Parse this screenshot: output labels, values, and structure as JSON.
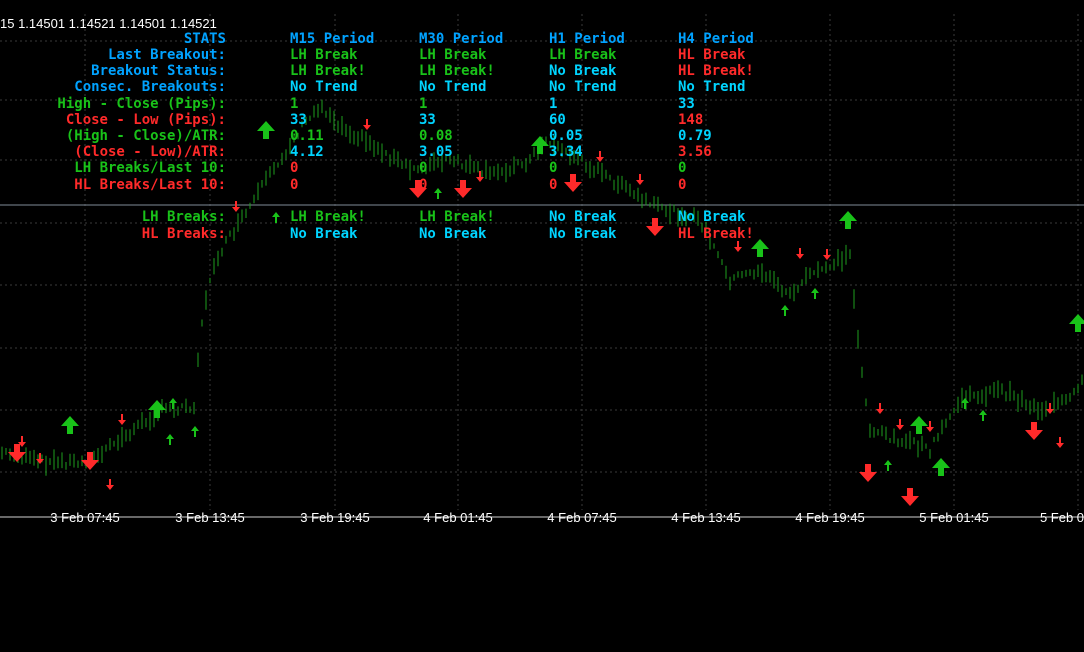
{
  "ohlc_readout": "15  1.14501 1.14521 1.14501 1.14521",
  "colors": {
    "background": "#000000",
    "label_blue": "#00A2FF",
    "label_green": "#19C219",
    "label_red": "#FF2A2A",
    "value_cyan": "#00D4FF",
    "candle": "#1E9E1E",
    "grid": "#3a3a3a"
  },
  "stats_table": {
    "header_label": "STATS",
    "periods": [
      "M15 Period",
      "M30 Period",
      "H1 Period",
      "H4 Period"
    ],
    "rows": [
      {
        "label": "Last Breakout:",
        "label_color": "blue",
        "values": [
          [
            "LH Break",
            "green"
          ],
          [
            "LH Break",
            "green"
          ],
          [
            "LH Break",
            "green"
          ],
          [
            "HL Break",
            "red"
          ]
        ]
      },
      {
        "label": "Breakout Status:",
        "label_color": "blue",
        "values": [
          [
            "LH Break!",
            "green"
          ],
          [
            "LH Break!",
            "green"
          ],
          [
            "No Break",
            "cyan"
          ],
          [
            "HL Break!",
            "red"
          ]
        ]
      },
      {
        "label": "Consec. Breakouts:",
        "label_color": "blue",
        "values": [
          [
            "No Trend",
            "cyan"
          ],
          [
            "No Trend",
            "cyan"
          ],
          [
            "No Trend",
            "cyan"
          ],
          [
            "No Trend",
            "cyan"
          ]
        ]
      },
      {
        "label": "High - Close (Pips):",
        "label_color": "green",
        "values": [
          [
            "1",
            "green"
          ],
          [
            "1",
            "green"
          ],
          [
            "1",
            "cyan"
          ],
          [
            "33",
            "cyan"
          ]
        ]
      },
      {
        "label": "Close - Low (Pips):",
        "label_color": "red",
        "values": [
          [
            "33",
            "cyan"
          ],
          [
            "33",
            "cyan"
          ],
          [
            "60",
            "cyan"
          ],
          [
            "148",
            "red"
          ]
        ]
      },
      {
        "label": "(High - Close)/ATR:",
        "label_color": "green",
        "values": [
          [
            "0.11",
            "green"
          ],
          [
            "0.08",
            "green"
          ],
          [
            "0.05",
            "cyan"
          ],
          [
            "0.79",
            "cyan"
          ]
        ]
      },
      {
        "label": "(Close - Low)/ATR:",
        "label_color": "red",
        "values": [
          [
            "4.12",
            "cyan"
          ],
          [
            "3.05",
            "cyan"
          ],
          [
            "3.34",
            "cyan"
          ],
          [
            "3.56",
            "red"
          ]
        ]
      },
      {
        "label": "LH Breaks/Last 10:",
        "label_color": "green",
        "values": [
          [
            "0",
            "red"
          ],
          [
            "0",
            "green"
          ],
          [
            "0",
            "green"
          ],
          [
            "0",
            "green"
          ]
        ]
      },
      {
        "label": "HL Breaks/Last 10:",
        "label_color": "red",
        "values": [
          [
            "0",
            "red"
          ],
          [
            "0",
            "red"
          ],
          [
            "0",
            "red"
          ],
          [
            "0",
            "red"
          ]
        ]
      }
    ],
    "bottom_rows": [
      {
        "label": "LH Breaks:",
        "label_color": "green",
        "values": [
          [
            "LH Break!",
            "green"
          ],
          [
            "LH Break!",
            "green"
          ],
          [
            "No Break",
            "cyan"
          ],
          [
            "No Break",
            "cyan"
          ]
        ]
      },
      {
        "label": "HL Breaks:",
        "label_color": "red",
        "values": [
          [
            "No Break",
            "cyan"
          ],
          [
            "No Break",
            "cyan"
          ],
          [
            "No Break",
            "cyan"
          ],
          [
            "HL Break!",
            "red"
          ]
        ]
      }
    ]
  },
  "x_axis_labels": [
    "3 Feb 07:45",
    "3 Feb 13:45",
    "3 Feb 19:45",
    "4 Feb 01:45",
    "4 Feb 07:45",
    "4 Feb 13:45",
    "4 Feb 19:45",
    "5 Feb 01:45",
    "5 Feb 0"
  ],
  "arrows": [
    {
      "dir": "down",
      "size": "big",
      "color": "red"
    },
    {
      "dir": "down",
      "size": "small",
      "color": "red"
    },
    {
      "dir": "down",
      "size": "small",
      "color": "red"
    },
    {
      "dir": "up",
      "size": "big",
      "color": "green"
    },
    {
      "dir": "down",
      "size": "big",
      "color": "red"
    },
    {
      "dir": "down",
      "size": "small",
      "color": "red"
    },
    {
      "dir": "down",
      "size": "small",
      "color": "red"
    },
    {
      "dir": "up",
      "size": "big",
      "color": "green"
    },
    {
      "dir": "up",
      "size": "small",
      "color": "green"
    },
    {
      "dir": "up",
      "size": "small",
      "color": "green"
    },
    {
      "dir": "up",
      "size": "small",
      "color": "green"
    },
    {
      "dir": "down",
      "size": "small",
      "color": "red"
    },
    {
      "dir": "up",
      "size": "big",
      "color": "green"
    },
    {
      "dir": "up",
      "size": "small",
      "color": "green"
    },
    {
      "dir": "down",
      "size": "small",
      "color": "red"
    },
    {
      "dir": "down",
      "size": "big",
      "color": "red"
    },
    {
      "dir": "down",
      "size": "big",
      "color": "red"
    },
    {
      "dir": "up",
      "size": "small",
      "color": "green"
    },
    {
      "dir": "down",
      "size": "small",
      "color": "red"
    },
    {
      "dir": "up",
      "size": "big",
      "color": "green"
    },
    {
      "dir": "down",
      "size": "big",
      "color": "red"
    },
    {
      "dir": "down",
      "size": "small",
      "color": "red"
    },
    {
      "dir": "down",
      "size": "small",
      "color": "red"
    },
    {
      "dir": "down",
      "size": "big",
      "color": "red"
    },
    {
      "dir": "up",
      "size": "big",
      "color": "green"
    },
    {
      "dir": "up",
      "size": "big",
      "color": "green"
    },
    {
      "dir": "down",
      "size": "small",
      "color": "red"
    },
    {
      "dir": "down",
      "size": "small",
      "color": "red"
    },
    {
      "dir": "down",
      "size": "small",
      "color": "red"
    },
    {
      "dir": "up",
      "size": "small",
      "color": "green"
    },
    {
      "dir": "up",
      "size": "small",
      "color": "green"
    },
    {
      "dir": "up",
      "size": "big",
      "color": "green"
    },
    {
      "dir": "down",
      "size": "big",
      "color": "red"
    },
    {
      "dir": "down",
      "size": "small",
      "color": "red"
    },
    {
      "dir": "down",
      "size": "small",
      "color": "red"
    },
    {
      "dir": "up",
      "size": "small",
      "color": "green"
    },
    {
      "dir": "down",
      "size": "small",
      "color": "red"
    },
    {
      "dir": "up",
      "size": "big",
      "color": "green"
    },
    {
      "dir": "down",
      "size": "big",
      "color": "red"
    },
    {
      "dir": "up",
      "size": "small",
      "color": "green"
    },
    {
      "dir": "up",
      "size": "small",
      "color": "green"
    },
    {
      "dir": "down",
      "size": "big",
      "color": "red"
    },
    {
      "dir": "down",
      "size": "small",
      "color": "red"
    },
    {
      "dir": "down",
      "size": "small",
      "color": "red"
    },
    {
      "dir": "up",
      "size": "big",
      "color": "green"
    }
  ]
}
